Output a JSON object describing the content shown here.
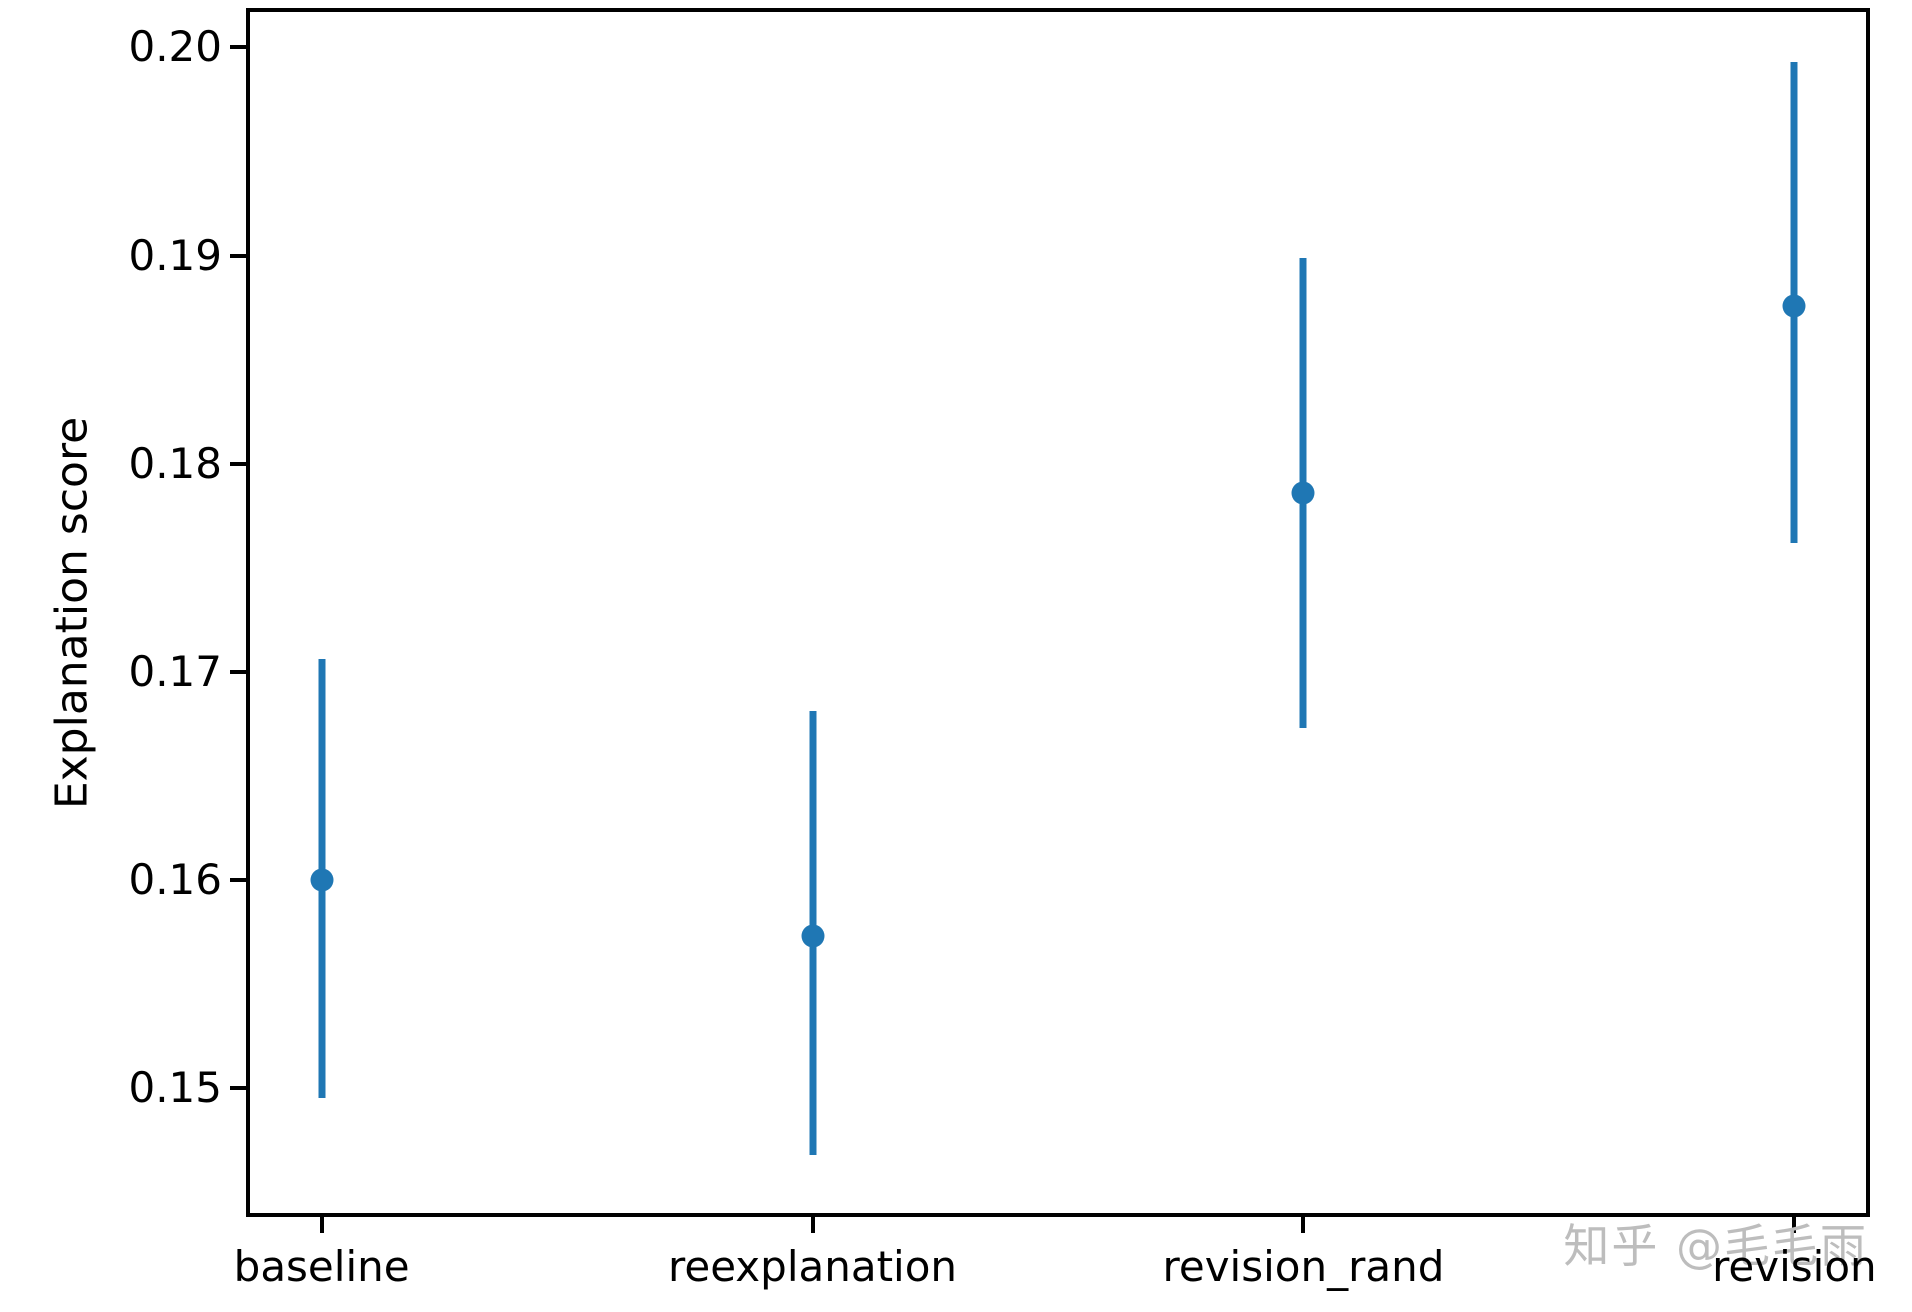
{
  "figure": {
    "background": "#ffffff",
    "axis_color": "#000000",
    "text_color": "#000000"
  },
  "watermark": {
    "text": "知乎 @毛毛雨",
    "color": "#bdbdbd"
  },
  "chart_data": {
    "type": "scatter",
    "style": "errorbar",
    "title": "",
    "xlabel": "",
    "ylabel": "Explanation score",
    "categories": [
      "baseline",
      "reexplanation",
      "revision_rand",
      "revision"
    ],
    "points": [
      {
        "category": "baseline",
        "y": 0.16,
        "y_low": 0.1495,
        "y_high": 0.1706
      },
      {
        "category": "reexplanation",
        "y": 0.1573,
        "y_low": 0.1468,
        "y_high": 0.1681
      },
      {
        "category": "revision_rand",
        "y": 0.1786,
        "y_low": 0.1673,
        "y_high": 0.1899
      },
      {
        "category": "revision",
        "y": 0.1876,
        "y_low": 0.1762,
        "y_high": 0.1993
      }
    ],
    "y_ticks": [
      {
        "value": 0.15,
        "label": "0.15"
      },
      {
        "value": 0.16,
        "label": "0.16"
      },
      {
        "value": 0.17,
        "label": "0.17"
      },
      {
        "value": 0.18,
        "label": "0.18"
      },
      {
        "value": 0.19,
        "label": "0.19"
      },
      {
        "value": 0.2,
        "label": "0.20"
      }
    ],
    "ylim": [
      0.1439,
      0.2018
    ],
    "xlim": [
      -0.15,
      3.15
    ],
    "grid": false,
    "legend": null,
    "point_color": "#1f77b4"
  }
}
